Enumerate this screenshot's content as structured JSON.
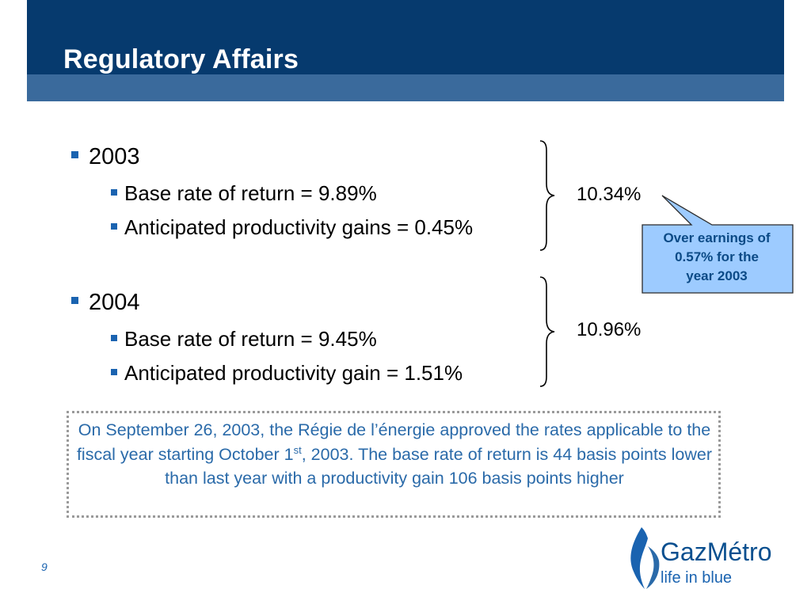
{
  "slide": {
    "title": "Regulatory Affairs",
    "page_number": "9"
  },
  "bullets": [
    {
      "year": "2003",
      "items": [
        "Base rate of return = 9.89%",
        "Anticipated productivity gains = 0.45%"
      ],
      "total": "10.34%"
    },
    {
      "year": "2004",
      "items": [
        "Base rate of return = 9.45%",
        "Anticipated productivity gain = 1.51%"
      ],
      "total": "10.96%"
    }
  ],
  "callout": {
    "lines": [
      "Over earnings of",
      "0.57% for the",
      "year 2003"
    ]
  },
  "note": {
    "part1": "On September 26, 2003, the Régie de l’énergie approved the rates applicable to the fiscal year starting October 1",
    "superscript": "st",
    "part2": ", 2003.  The base rate of return is 44 basis points lower than last year with a productivity gain 106 basis points higher"
  },
  "logo": {
    "name": "GazMétro",
    "tagline": "life in blue"
  },
  "colors": {
    "header_dark": "#063a6e",
    "header_light": "#3a6a9c",
    "bullet_blue": "#1a63b0",
    "callout_fill": "#9dcbff",
    "note_text": "#2a6aa9"
  }
}
